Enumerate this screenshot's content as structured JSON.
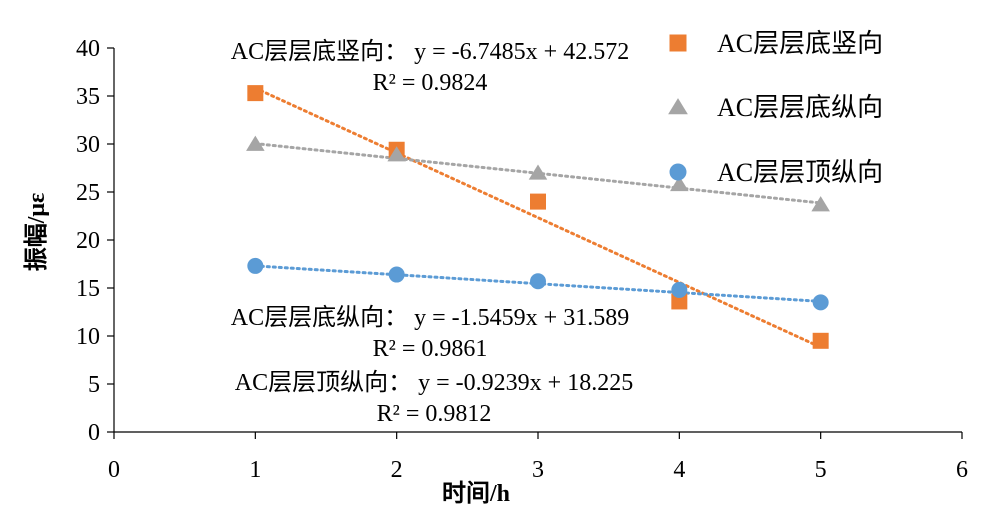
{
  "chart_data": {
    "type": "scatter",
    "title": "",
    "xlabel": "时间/h",
    "ylabel": "振幅/με",
    "xlim": [
      0,
      6
    ],
    "ylim": [
      0,
      40
    ],
    "x_ticks": [
      0,
      1,
      2,
      3,
      4,
      5,
      6
    ],
    "y_ticks": [
      0,
      5,
      10,
      15,
      20,
      25,
      30,
      35,
      40
    ],
    "x_tick_labels": [
      "0",
      "1",
      "2",
      "3",
      "4",
      "5",
      "6"
    ],
    "y_tick_labels": [
      "0",
      "5",
      "10",
      "15",
      "20",
      "25",
      "30",
      "35",
      "40"
    ],
    "grid": false,
    "legend_position": "top-right",
    "series": [
      {
        "name": "AC层层底竖向",
        "marker": "square",
        "color": "#ED7D31",
        "x": [
          1,
          2,
          3,
          4,
          5
        ],
        "y": [
          35.3,
          29.4,
          24.0,
          13.6,
          9.5
        ],
        "trendline": {
          "slope": -6.7485,
          "intercept": 42.572
        },
        "equation_label": "AC层层底竖向：  y = -6.7485x + 42.572",
        "r2_label": "R² = 0.9824"
      },
      {
        "name": "AC层层底纵向",
        "marker": "triangle",
        "color": "#A5A5A5",
        "x": [
          1,
          2,
          3,
          4,
          5
        ],
        "y": [
          30.0,
          28.9,
          27.0,
          25.8,
          23.7
        ],
        "trendline": {
          "slope": -1.5459,
          "intercept": 31.589
        },
        "equation_label": "AC层层底纵向：  y = -1.5459x + 31.589",
        "r2_label": "R² = 0.9861"
      },
      {
        "name": "AC层层顶纵向",
        "marker": "circle",
        "color": "#5B9BD5",
        "x": [
          1,
          2,
          3,
          4,
          5
        ],
        "y": [
          17.3,
          16.4,
          15.7,
          14.8,
          13.5
        ],
        "trendline": {
          "slope": -0.9239,
          "intercept": 18.225
        },
        "equation_label": "AC层层顶纵向：  y = -0.9239x + 18.225",
        "r2_label": "R² = 0.9812"
      }
    ]
  }
}
